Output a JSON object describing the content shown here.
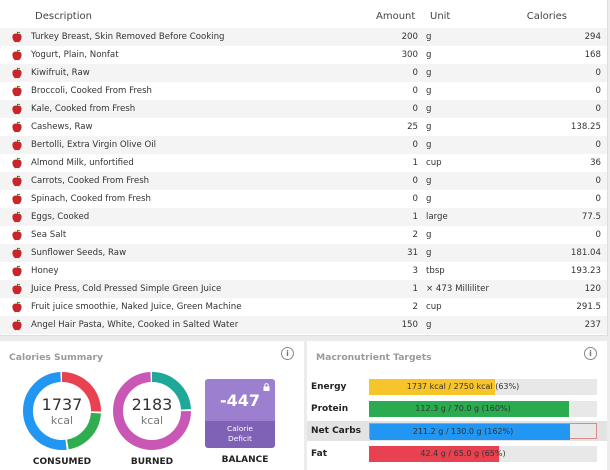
{
  "diary": {
    "headers": {
      "description": "Description",
      "amount": "Amount",
      "unit": "Unit",
      "calories": "Calories"
    },
    "rows": [
      {
        "description": "Turkey Breast, Skin Removed Before Cooking",
        "amount": "200",
        "unit": "g",
        "calories": "294"
      },
      {
        "description": "Yogurt, Plain, Nonfat",
        "amount": "300",
        "unit": "g",
        "calories": "168"
      },
      {
        "description": "Kiwifruit, Raw",
        "amount": "0",
        "unit": "g",
        "calories": "0"
      },
      {
        "description": "Broccoli, Cooked From Fresh",
        "amount": "0",
        "unit": "g",
        "calories": "0"
      },
      {
        "description": "Kale, Cooked from Fresh",
        "amount": "0",
        "unit": "g",
        "calories": "0"
      },
      {
        "description": "Cashews, Raw",
        "amount": "25",
        "unit": "g",
        "calories": "138.25"
      },
      {
        "description": "Bertolli, Extra Virgin Olive Oil",
        "amount": "0",
        "unit": "g",
        "calories": "0"
      },
      {
        "description": "Almond Milk, unfortified",
        "amount": "1",
        "unit": "cup",
        "calories": "36"
      },
      {
        "description": "Carrots, Cooked From Fresh",
        "amount": "0",
        "unit": "g",
        "calories": "0"
      },
      {
        "description": "Spinach, Cooked from Fresh",
        "amount": "0",
        "unit": "g",
        "calories": "0"
      },
      {
        "description": "Eggs, Cooked",
        "amount": "1",
        "unit": "large",
        "calories": "77.5"
      },
      {
        "description": "Sea Salt",
        "amount": "2",
        "unit": "g",
        "calories": "0"
      },
      {
        "description": "Sunflower Seeds, Raw",
        "amount": "31",
        "unit": "g",
        "calories": "181.04"
      },
      {
        "description": "Honey",
        "amount": "3",
        "unit": "tbsp",
        "calories": "193.23"
      },
      {
        "description": "Juice Press, Cold Pressed Simple Green Juice",
        "amount": "1",
        "unit": "× 473 Milliliter",
        "calories": "120"
      },
      {
        "description": "Fruit juice smoothie, Naked Juice, Green Machine",
        "amount": "2",
        "unit": "cup",
        "calories": "291.5"
      },
      {
        "description": "Angel Hair Pasta, White, Cooked in Salted Water",
        "amount": "150",
        "unit": "g",
        "calories": "237"
      }
    ]
  },
  "calories_summary": {
    "title": "Calories Summary",
    "consumed": {
      "value": "1737",
      "unit": "kcal",
      "label": "CONSUMED",
      "segments": [
        0.26,
        0.22,
        0.52
      ],
      "segment_colors": [
        "#e8414f",
        "#2eae4f",
        "#2196f3"
      ]
    },
    "burned": {
      "value": "2183",
      "unit": "kcal",
      "label": "BURNED",
      "segments": [
        0.25,
        0.75
      ],
      "segment_colors": [
        "#1fa89a",
        "#c957b6"
      ]
    },
    "balance": {
      "value": "-447",
      "sub_line1": "Calorie",
      "sub_line2": "Deficit",
      "label": "BALANCE"
    }
  },
  "macronutrient_targets": {
    "title": "Macronutrient Targets",
    "rows": [
      {
        "name": "Energy",
        "text": "1737 kcal / 2750 kcal (63%)",
        "fraction": 0.63,
        "color": "#f7c42a"
      },
      {
        "name": "Protein",
        "text": "112.3 g / 70.0 g (160%)",
        "fraction": 1.0,
        "color": "#2aab4f"
      },
      {
        "name": "Net Carbs",
        "text": "211.2 g / 130.0 g (162%)",
        "fraction": 1.0,
        "color": "#2196f3"
      },
      {
        "name": "Fat",
        "text": "42.4 g / 65.0 g (65%)",
        "fraction": 0.65,
        "color": "#e8414f"
      }
    ]
  },
  "icons": {
    "food": "apple-icon",
    "info": "info-icon",
    "lock": "lock-icon"
  },
  "info_glyph": "i"
}
